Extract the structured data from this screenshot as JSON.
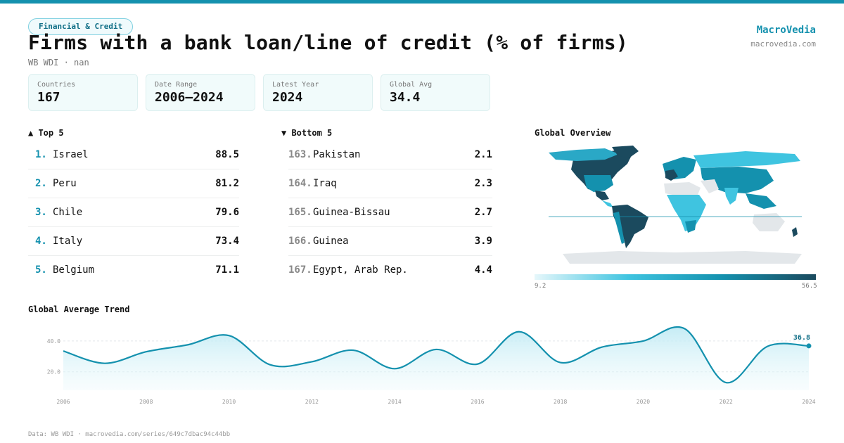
{
  "header": {
    "badge": "Financial & Credit",
    "title": "Firms with a bank loan/line of credit (% of firms)",
    "subtitle": "WB WDI · nan",
    "brand": "MacroVedia",
    "brand_url": "macrovedia.com"
  },
  "stats": [
    {
      "label": "Countries",
      "value": "167"
    },
    {
      "label": "Date Range",
      "value": "2006–2024"
    },
    {
      "label": "Latest Year",
      "value": "2024"
    },
    {
      "label": "Global Avg",
      "value": "34.4"
    }
  ],
  "top5": {
    "title": "▲ Top 5",
    "items": [
      {
        "rank": "1.",
        "name": "Israel",
        "value": "88.5"
      },
      {
        "rank": "2.",
        "name": "Peru",
        "value": "81.2"
      },
      {
        "rank": "3.",
        "name": "Chile",
        "value": "79.6"
      },
      {
        "rank": "4.",
        "name": "Italy",
        "value": "73.4"
      },
      {
        "rank": "5.",
        "name": "Belgium",
        "value": "71.1"
      }
    ]
  },
  "bottom5": {
    "title": "▼ Bottom 5",
    "items": [
      {
        "rank": "163.",
        "name": "Pakistan",
        "value": "2.1"
      },
      {
        "rank": "164.",
        "name": "Iraq",
        "value": "2.3"
      },
      {
        "rank": "165.",
        "name": "Guinea-Bissau",
        "value": "2.7"
      },
      {
        "rank": "166.",
        "name": "Guinea",
        "value": "3.9"
      },
      {
        "rank": "167.",
        "name": "Egypt, Arab Rep.",
        "value": "4.4"
      }
    ]
  },
  "map": {
    "title": "Global Overview",
    "legend_min": "9.2",
    "legend_max": "56.5",
    "colors": [
      "#e6f7fb",
      "#3fc4e0",
      "#1491ae",
      "#1b4a5e"
    ]
  },
  "chart_data": {
    "type": "area",
    "title": "Global Average Trend",
    "x": [
      2006,
      2007,
      2008,
      2009,
      2010,
      2011,
      2012,
      2013,
      2014,
      2015,
      2016,
      2017,
      2018,
      2019,
      2020,
      2021,
      2022,
      2023,
      2024
    ],
    "x_tick_labels": [
      "2006",
      "2008",
      "2010",
      "2012",
      "2014",
      "2016",
      "2018",
      "2020",
      "2022",
      "2024"
    ],
    "y_tick_labels": [
      "20.0",
      "40.0"
    ],
    "y_ticks": [
      20,
      40
    ],
    "ylim": [
      8,
      50
    ],
    "series": [
      {
        "values": [
          33.5,
          25.5,
          33.0,
          37.5,
          43.5,
          24.5,
          26.5,
          34.0,
          22.0,
          34.5,
          25.0,
          46.0,
          26.0,
          36.0,
          40.0,
          48.0,
          13.0,
          36.5,
          36.8
        ]
      }
    ],
    "last_value_label": "36.8",
    "line_color": "#1491ae",
    "grid": true
  },
  "footer": "Data: WB WDI · macrovedia.com/series/649c7dbac94c44bb"
}
